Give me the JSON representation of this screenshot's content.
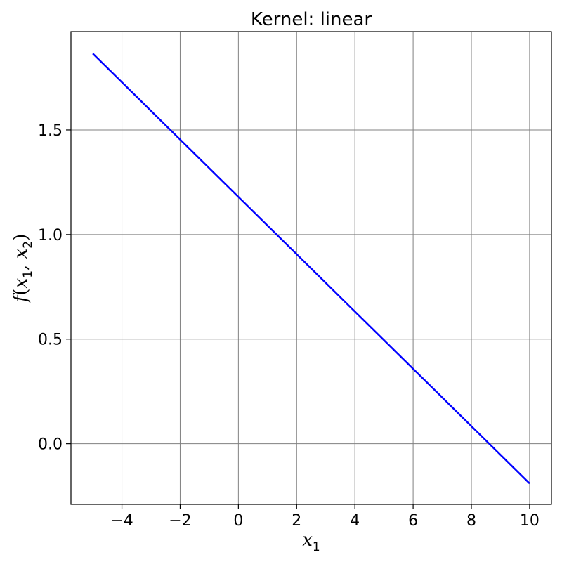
{
  "chart_data": {
    "type": "line",
    "title": "Kernel: linear",
    "xlabel_var": "x",
    "xlabel_sub": "1",
    "ylabel_func": "f",
    "ylabel_var1": "x",
    "ylabel_sub1": "1",
    "ylabel_var2": "x",
    "ylabel_sub2": "2",
    "xlim": [
      -5.75,
      10.75
    ],
    "ylim": [
      -0.29,
      1.97
    ],
    "xticks": [
      -4,
      -2,
      0,
      2,
      4,
      6,
      8,
      10
    ],
    "xtick_labels": [
      "−4",
      "−2",
      "0",
      "2",
      "4",
      "6",
      "8",
      "10"
    ],
    "yticks": [
      0.0,
      0.5,
      1.0,
      1.5
    ],
    "ytick_labels": [
      "0.0",
      "0.5",
      "1.0",
      "1.5"
    ],
    "grid": true,
    "series": [
      {
        "color": "#0000ff",
        "x": [
          -5,
          10
        ],
        "y": [
          1.865,
          -0.19
        ]
      }
    ]
  },
  "colors": {
    "line": "#0000ff",
    "grid": "#808080",
    "axes": "#000000"
  }
}
